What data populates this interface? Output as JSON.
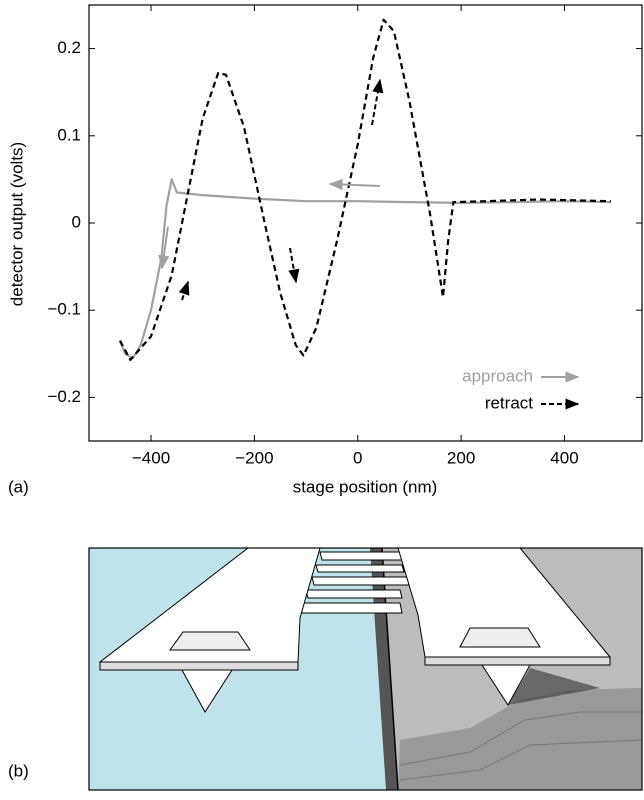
{
  "chart_data": {
    "type": "line",
    "xlabel": "stage position (nm)",
    "ylabel": "detector output (volts)",
    "xlim": [
      -520,
      550
    ],
    "ylim": [
      -0.25,
      0.25
    ],
    "xticks": [
      {
        "value": -400,
        "label": "−400"
      },
      {
        "value": -200,
        "label": "−200"
      },
      0,
      200,
      400
    ],
    "yticks": [
      {
        "value": -0.2,
        "label": "−0.2"
      },
      {
        "value": -0.1,
        "label": "−0.1"
      },
      0,
      0.1,
      0.2
    ],
    "grid": false,
    "legend": "lower right",
    "series": [
      {
        "name": "approach",
        "color": "#a0a0a0",
        "linestyle": "solid",
        "x": [
          490,
          400,
          300,
          200,
          100,
          0,
          -100,
          -200,
          -300,
          -350,
          -360,
          -370,
          -380,
          -400,
          -420,
          -435,
          -450,
          -460
        ],
        "values": [
          0.024,
          0.025,
          0.024,
          0.023,
          0.024,
          0.025,
          0.025,
          0.028,
          0.032,
          0.035,
          0.05,
          0.02,
          -0.04,
          -0.1,
          -0.14,
          -0.155,
          -0.15,
          -0.135
        ]
      },
      {
        "name": "retract",
        "color": "#000000",
        "linestyle": "dashed",
        "x": [
          -460,
          -440,
          -400,
          -360,
          -330,
          -300,
          -270,
          -255,
          -220,
          -180,
          -150,
          -120,
          -105,
          -80,
          -40,
          0,
          30,
          50,
          70,
          100,
          140,
          165,
          175,
          185,
          250,
          350,
          490
        ],
        "values": [
          -0.135,
          -0.157,
          -0.13,
          -0.06,
          0.03,
          0.12,
          0.172,
          0.17,
          0.11,
          0.0,
          -0.08,
          -0.14,
          -0.152,
          -0.12,
          -0.02,
          0.09,
          0.19,
          0.233,
          0.22,
          0.14,
          0.01,
          -0.085,
          -0.02,
          0.024,
          0.025,
          0.027,
          0.025
        ]
      }
    ]
  },
  "panels": {
    "a": "(a)",
    "b": "(b)"
  }
}
